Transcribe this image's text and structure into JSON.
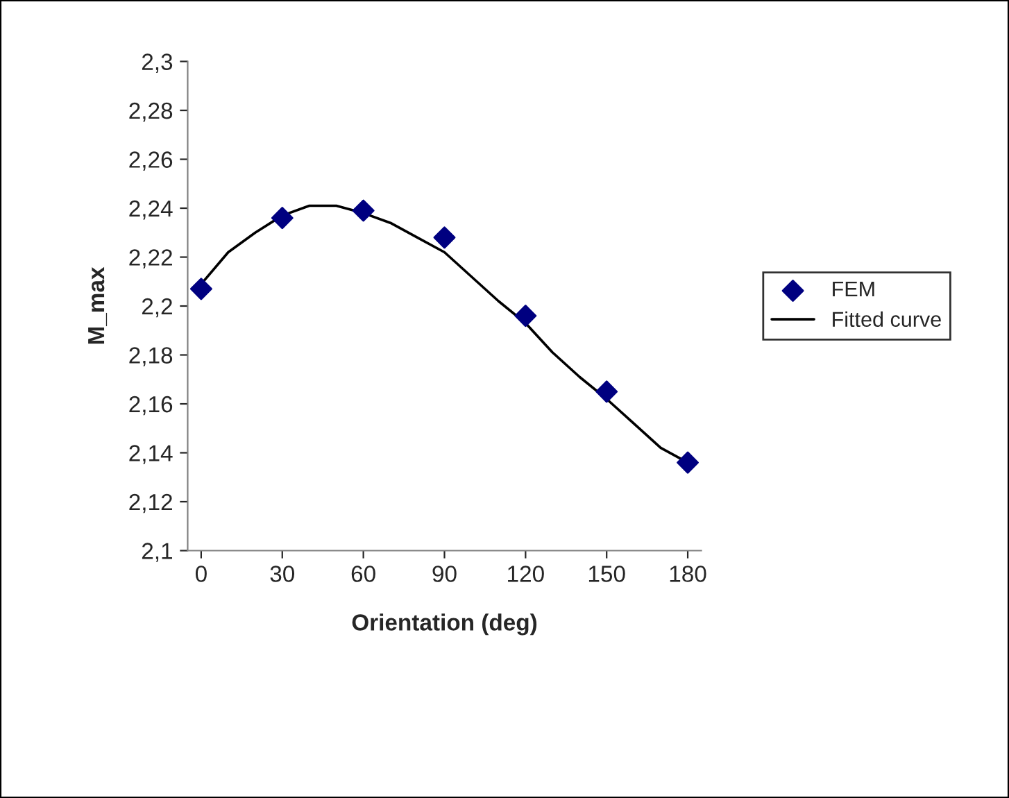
{
  "chart_data": {
    "type": "scatter",
    "xlabel": "Orientation (deg)",
    "ylabel": "M_max",
    "xlim": [
      -5,
      185
    ],
    "xticks": [
      0,
      30,
      60,
      90,
      120,
      150,
      180
    ],
    "ylim": [
      2.1,
      2.3
    ],
    "yticks": [
      {
        "value": 2.1,
        "label": "2,1"
      },
      {
        "value": 2.12,
        "label": "2,12"
      },
      {
        "value": 2.14,
        "label": "2,14"
      },
      {
        "value": 2.16,
        "label": "2,16"
      },
      {
        "value": 2.18,
        "label": "2,18"
      },
      {
        "value": 2.2,
        "label": "2,2"
      },
      {
        "value": 2.22,
        "label": "2,22"
      },
      {
        "value": 2.24,
        "label": "2,24"
      },
      {
        "value": 2.26,
        "label": "2,26"
      },
      {
        "value": 2.28,
        "label": "2,28"
      },
      {
        "value": 2.3,
        "label": "2,3"
      }
    ],
    "grid": false,
    "legend": "right",
    "series": [
      {
        "name": "FEM",
        "marker": "diamond",
        "color": "#000080",
        "x": [
          0,
          30,
          60,
          90,
          120,
          150,
          180
        ],
        "values": [
          2.207,
          2.236,
          2.239,
          2.228,
          2.196,
          2.165,
          2.136
        ]
      },
      {
        "name": "Fitted curve",
        "type": "line",
        "marker": "none",
        "line_style": "solid",
        "color": "#000000",
        "x": [
          0,
          10,
          20,
          30,
          40,
          50,
          60,
          70,
          80,
          90,
          100,
          110,
          120,
          130,
          140,
          150,
          160,
          170,
          180
        ],
        "values": [
          2.209,
          2.222,
          2.23,
          2.237,
          2.241,
          2.241,
          2.238,
          2.234,
          2.228,
          2.222,
          2.212,
          2.202,
          2.193,
          2.181,
          2.171,
          2.162,
          2.152,
          2.142,
          2.136
        ]
      }
    ]
  }
}
